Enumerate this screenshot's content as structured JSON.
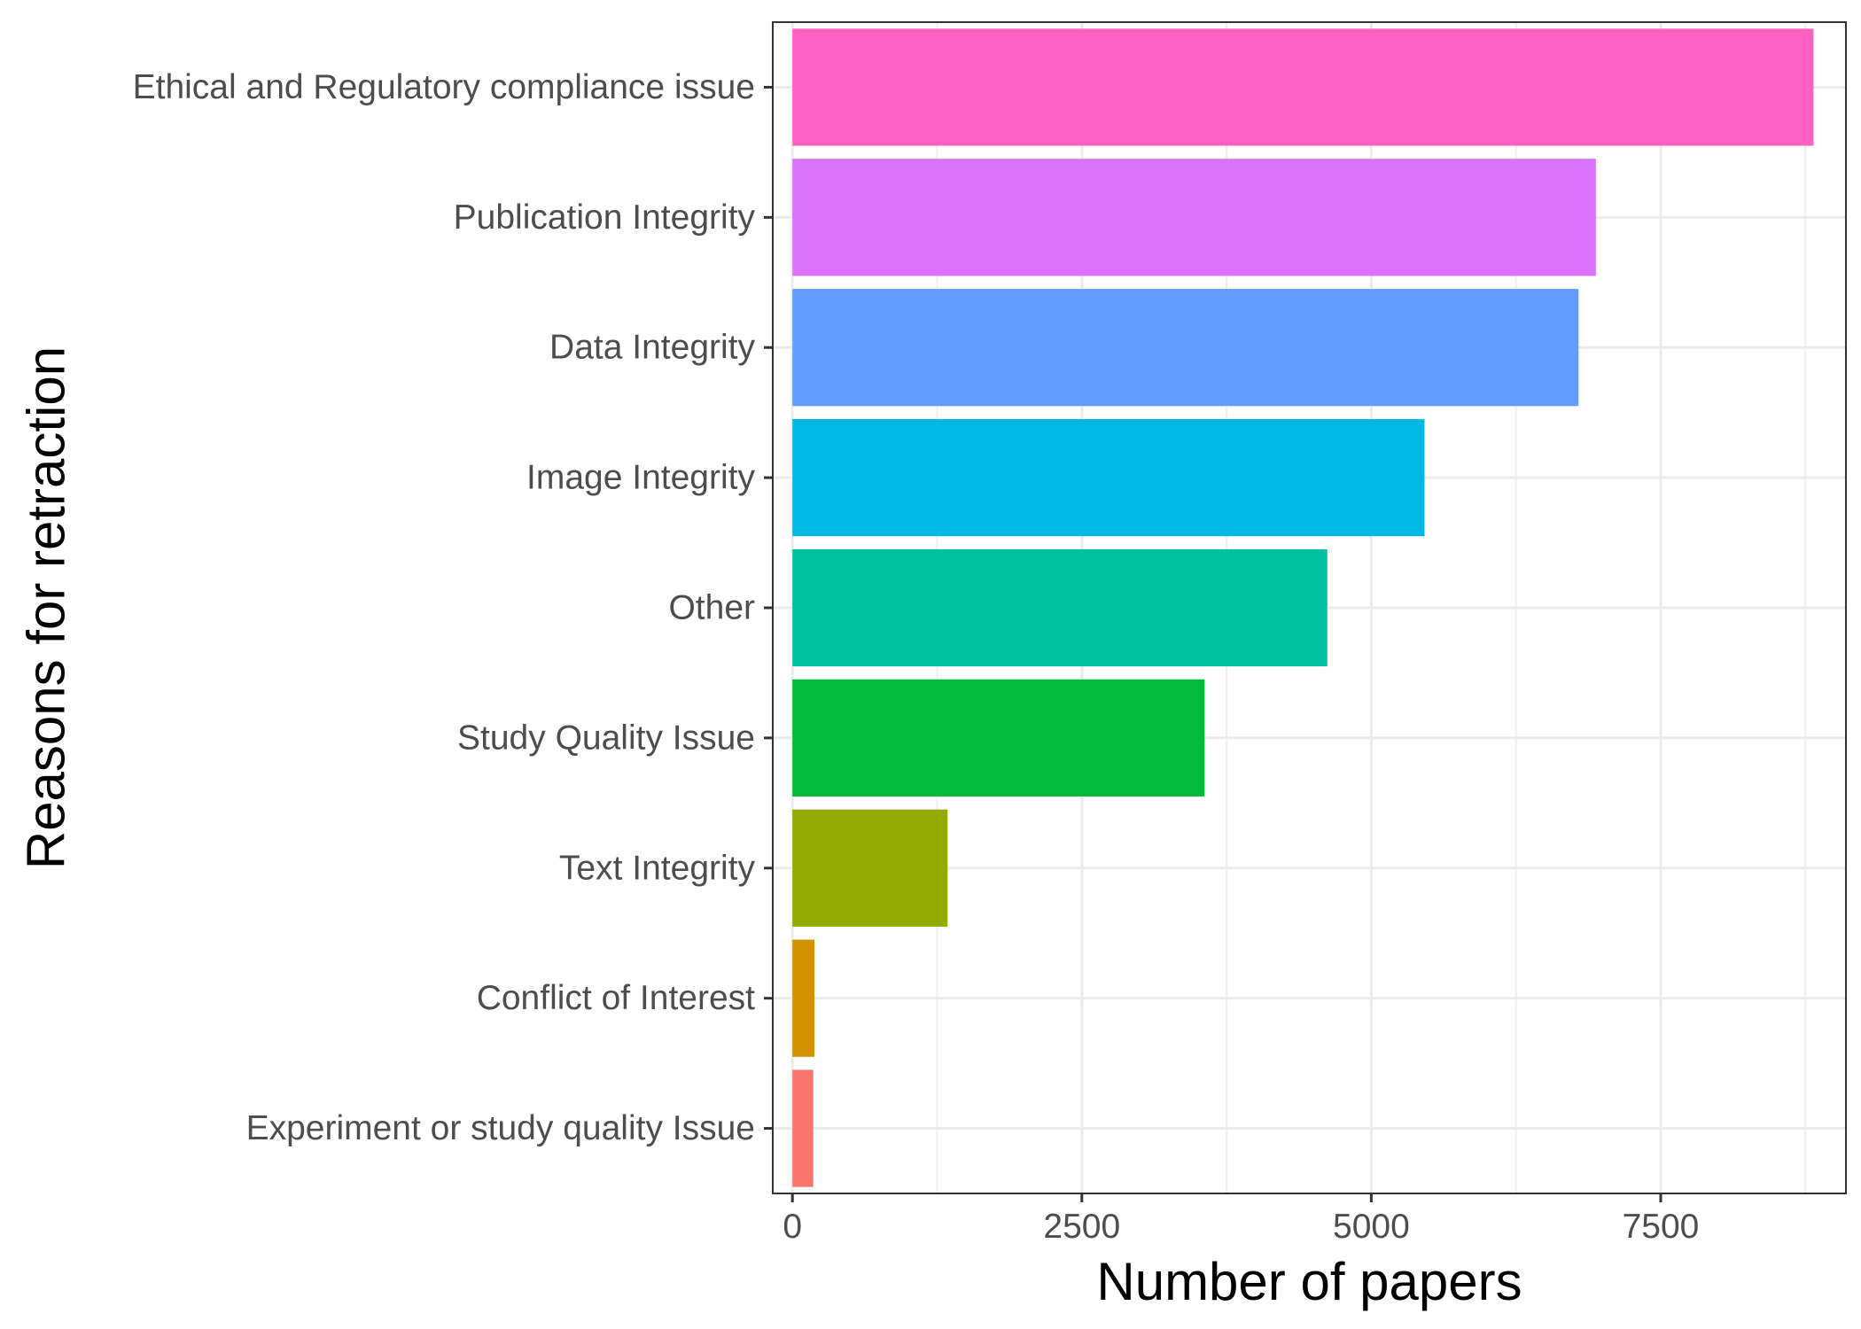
{
  "chart_data": {
    "type": "bar",
    "orientation": "horizontal",
    "title": "",
    "xlabel": "Number of papers",
    "ylabel": "Reasons for retraction",
    "xlim": [
      -170,
      9100
    ],
    "xticks": [
      0,
      2500,
      5000,
      7500
    ],
    "xtick_labels": [
      "0",
      "2500",
      "5000",
      "7500"
    ],
    "grid": true,
    "legend": "none",
    "categories": [
      "Ethical and Regulatory compliance issue",
      "Publication Integrity",
      "Data Integrity",
      "Image Integrity",
      "Other",
      "Study Quality Issue",
      "Text Integrity",
      "Conflict of Interest",
      "Experiment or study quality Issue"
    ],
    "values": [
      8820,
      6940,
      6790,
      5460,
      4620,
      3560,
      1340,
      190,
      180
    ],
    "colors": [
      "#FF61C3",
      "#DB72FB",
      "#619CFF",
      "#00B9E3",
      "#00C19F",
      "#00BA38",
      "#93AA00",
      "#D39200",
      "#F8766D"
    ]
  }
}
